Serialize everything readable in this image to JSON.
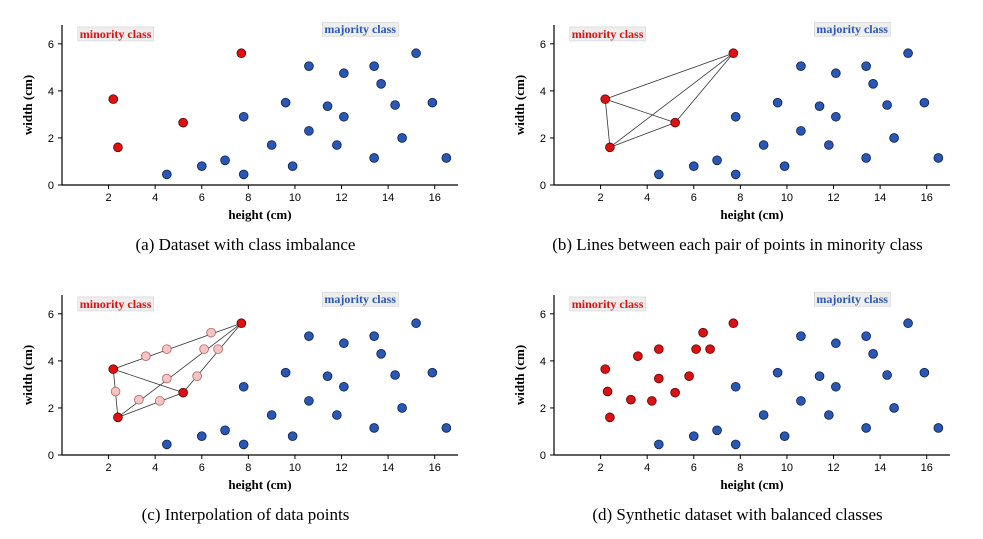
{
  "colors": {
    "minority": "#dd1111",
    "majority": "#2a56b4",
    "synthetic": "#f7c4c4",
    "line": "#333333"
  },
  "chart_data": [
    {
      "id": "a",
      "type": "scatter",
      "caption": "(a) Dataset with class imbalance",
      "xlabel": "height (cm)",
      "ylabel": "width (cm)",
      "xlim": [
        0,
        17
      ],
      "ylim": [
        0,
        6.8
      ],
      "xticks": [
        "2",
        "4",
        "6",
        "8",
        "10",
        "12",
        "14",
        "16"
      ],
      "yticks": [
        "0",
        "2",
        "4",
        "6"
      ],
      "legend": {
        "minority": "minority class",
        "majority": "majority class"
      },
      "majority_points": [
        [
          4.5,
          0.45
        ],
        [
          6.0,
          0.8
        ],
        [
          7.0,
          1.05
        ],
        [
          7.8,
          0.45
        ],
        [
          7.8,
          2.9
        ],
        [
          9.0,
          1.7
        ],
        [
          9.6,
          3.5
        ],
        [
          9.9,
          0.8
        ],
        [
          10.6,
          5.05
        ],
        [
          10.6,
          2.3
        ],
        [
          11.4,
          3.35
        ],
        [
          11.8,
          1.7
        ],
        [
          12.1,
          4.75
        ],
        [
          12.1,
          2.9
        ],
        [
          13.4,
          5.05
        ],
        [
          13.4,
          1.15
        ],
        [
          13.7,
          4.3
        ],
        [
          14.3,
          3.4
        ],
        [
          14.6,
          2.0
        ],
        [
          15.2,
          5.6
        ],
        [
          15.9,
          3.5
        ],
        [
          16.5,
          1.15
        ]
      ],
      "minority_points": [
        [
          2.2,
          3.65
        ],
        [
          2.4,
          1.6
        ],
        [
          5.2,
          2.65
        ],
        [
          7.7,
          5.6
        ]
      ],
      "synthetic_points": [],
      "show_lines": false
    },
    {
      "id": "b",
      "type": "scatter",
      "caption": "(b) Lines between each pair of points in minority class",
      "xlabel": "height (cm)",
      "ylabel": "width (cm)",
      "xlim": [
        0,
        17
      ],
      "ylim": [
        0,
        6.8
      ],
      "xticks": [
        "2",
        "4",
        "6",
        "8",
        "10",
        "12",
        "14",
        "16"
      ],
      "yticks": [
        "0",
        "2",
        "4",
        "6"
      ],
      "legend": {
        "minority": "minority class",
        "majority": "majority class"
      },
      "majority_points": [
        [
          4.5,
          0.45
        ],
        [
          6.0,
          0.8
        ],
        [
          7.0,
          1.05
        ],
        [
          7.8,
          0.45
        ],
        [
          7.8,
          2.9
        ],
        [
          9.0,
          1.7
        ],
        [
          9.6,
          3.5
        ],
        [
          9.9,
          0.8
        ],
        [
          10.6,
          5.05
        ],
        [
          10.6,
          2.3
        ],
        [
          11.4,
          3.35
        ],
        [
          11.8,
          1.7
        ],
        [
          12.1,
          4.75
        ],
        [
          12.1,
          2.9
        ],
        [
          13.4,
          5.05
        ],
        [
          13.4,
          1.15
        ],
        [
          13.7,
          4.3
        ],
        [
          14.3,
          3.4
        ],
        [
          14.6,
          2.0
        ],
        [
          15.2,
          5.6
        ],
        [
          15.9,
          3.5
        ],
        [
          16.5,
          1.15
        ]
      ],
      "minority_points": [
        [
          2.2,
          3.65
        ],
        [
          2.4,
          1.6
        ],
        [
          5.2,
          2.65
        ],
        [
          7.7,
          5.6
        ]
      ],
      "synthetic_points": [],
      "show_lines": true
    },
    {
      "id": "c",
      "type": "scatter",
      "caption": "(c) Interpolation of data points",
      "xlabel": "height (cm)",
      "ylabel": "width (cm)",
      "xlim": [
        0,
        17
      ],
      "ylim": [
        0,
        6.8
      ],
      "xticks": [
        "2",
        "4",
        "6",
        "8",
        "10",
        "12",
        "14",
        "16"
      ],
      "yticks": [
        "0",
        "2",
        "4",
        "6"
      ],
      "legend": {
        "minority": "minority class",
        "majority": "majority class"
      },
      "majority_points": [
        [
          4.5,
          0.45
        ],
        [
          6.0,
          0.8
        ],
        [
          7.0,
          1.05
        ],
        [
          7.8,
          0.45
        ],
        [
          7.8,
          2.9
        ],
        [
          9.0,
          1.7
        ],
        [
          9.6,
          3.5
        ],
        [
          9.9,
          0.8
        ],
        [
          10.6,
          5.05
        ],
        [
          10.6,
          2.3
        ],
        [
          11.4,
          3.35
        ],
        [
          11.8,
          1.7
        ],
        [
          12.1,
          4.75
        ],
        [
          12.1,
          2.9
        ],
        [
          13.4,
          5.05
        ],
        [
          13.4,
          1.15
        ],
        [
          13.7,
          4.3
        ],
        [
          14.3,
          3.4
        ],
        [
          14.6,
          2.0
        ],
        [
          15.2,
          5.6
        ],
        [
          15.9,
          3.5
        ],
        [
          16.5,
          1.15
        ]
      ],
      "minority_points": [
        [
          2.2,
          3.65
        ],
        [
          2.4,
          1.6
        ],
        [
          5.2,
          2.65
        ],
        [
          7.7,
          5.6
        ]
      ],
      "synthetic_points": [
        [
          2.3,
          2.7
        ],
        [
          3.3,
          2.35
        ],
        [
          3.6,
          4.2
        ],
        [
          4.2,
          2.3
        ],
        [
          4.5,
          4.5
        ],
        [
          4.5,
          3.25
        ],
        [
          5.8,
          3.35
        ],
        [
          6.1,
          4.5
        ],
        [
          6.4,
          5.2
        ],
        [
          6.7,
          4.5
        ]
      ],
      "show_lines": true
    },
    {
      "id": "d",
      "type": "scatter",
      "caption": "(d) Synthetic dataset with balanced classes",
      "xlabel": "height (cm)",
      "ylabel": "width (cm)",
      "xlim": [
        0,
        17
      ],
      "ylim": [
        0,
        6.8
      ],
      "xticks": [
        "2",
        "4",
        "6",
        "8",
        "10",
        "12",
        "14",
        "16"
      ],
      "yticks": [
        "0",
        "2",
        "4",
        "6"
      ],
      "legend": {
        "minority": "minority class",
        "majority": "majority class"
      },
      "majority_points": [
        [
          4.5,
          0.45
        ],
        [
          6.0,
          0.8
        ],
        [
          7.0,
          1.05
        ],
        [
          7.8,
          0.45
        ],
        [
          7.8,
          2.9
        ],
        [
          9.0,
          1.7
        ],
        [
          9.6,
          3.5
        ],
        [
          9.9,
          0.8
        ],
        [
          10.6,
          5.05
        ],
        [
          10.6,
          2.3
        ],
        [
          11.4,
          3.35
        ],
        [
          11.8,
          1.7
        ],
        [
          12.1,
          4.75
        ],
        [
          12.1,
          2.9
        ],
        [
          13.4,
          5.05
        ],
        [
          13.4,
          1.15
        ],
        [
          13.7,
          4.3
        ],
        [
          14.3,
          3.4
        ],
        [
          14.6,
          2.0
        ],
        [
          15.2,
          5.6
        ],
        [
          15.9,
          3.5
        ],
        [
          16.5,
          1.15
        ]
      ],
      "minority_points": [
        [
          2.2,
          3.65
        ],
        [
          2.4,
          1.6
        ],
        [
          5.2,
          2.65
        ],
        [
          7.7,
          5.6
        ],
        [
          2.3,
          2.7
        ],
        [
          3.3,
          2.35
        ],
        [
          3.6,
          4.2
        ],
        [
          4.2,
          2.3
        ],
        [
          4.5,
          4.5
        ],
        [
          4.5,
          3.25
        ],
        [
          5.8,
          3.35
        ],
        [
          6.1,
          4.5
        ],
        [
          6.4,
          5.2
        ],
        [
          6.7,
          4.5
        ]
      ],
      "synthetic_points": [],
      "show_lines": false
    }
  ]
}
